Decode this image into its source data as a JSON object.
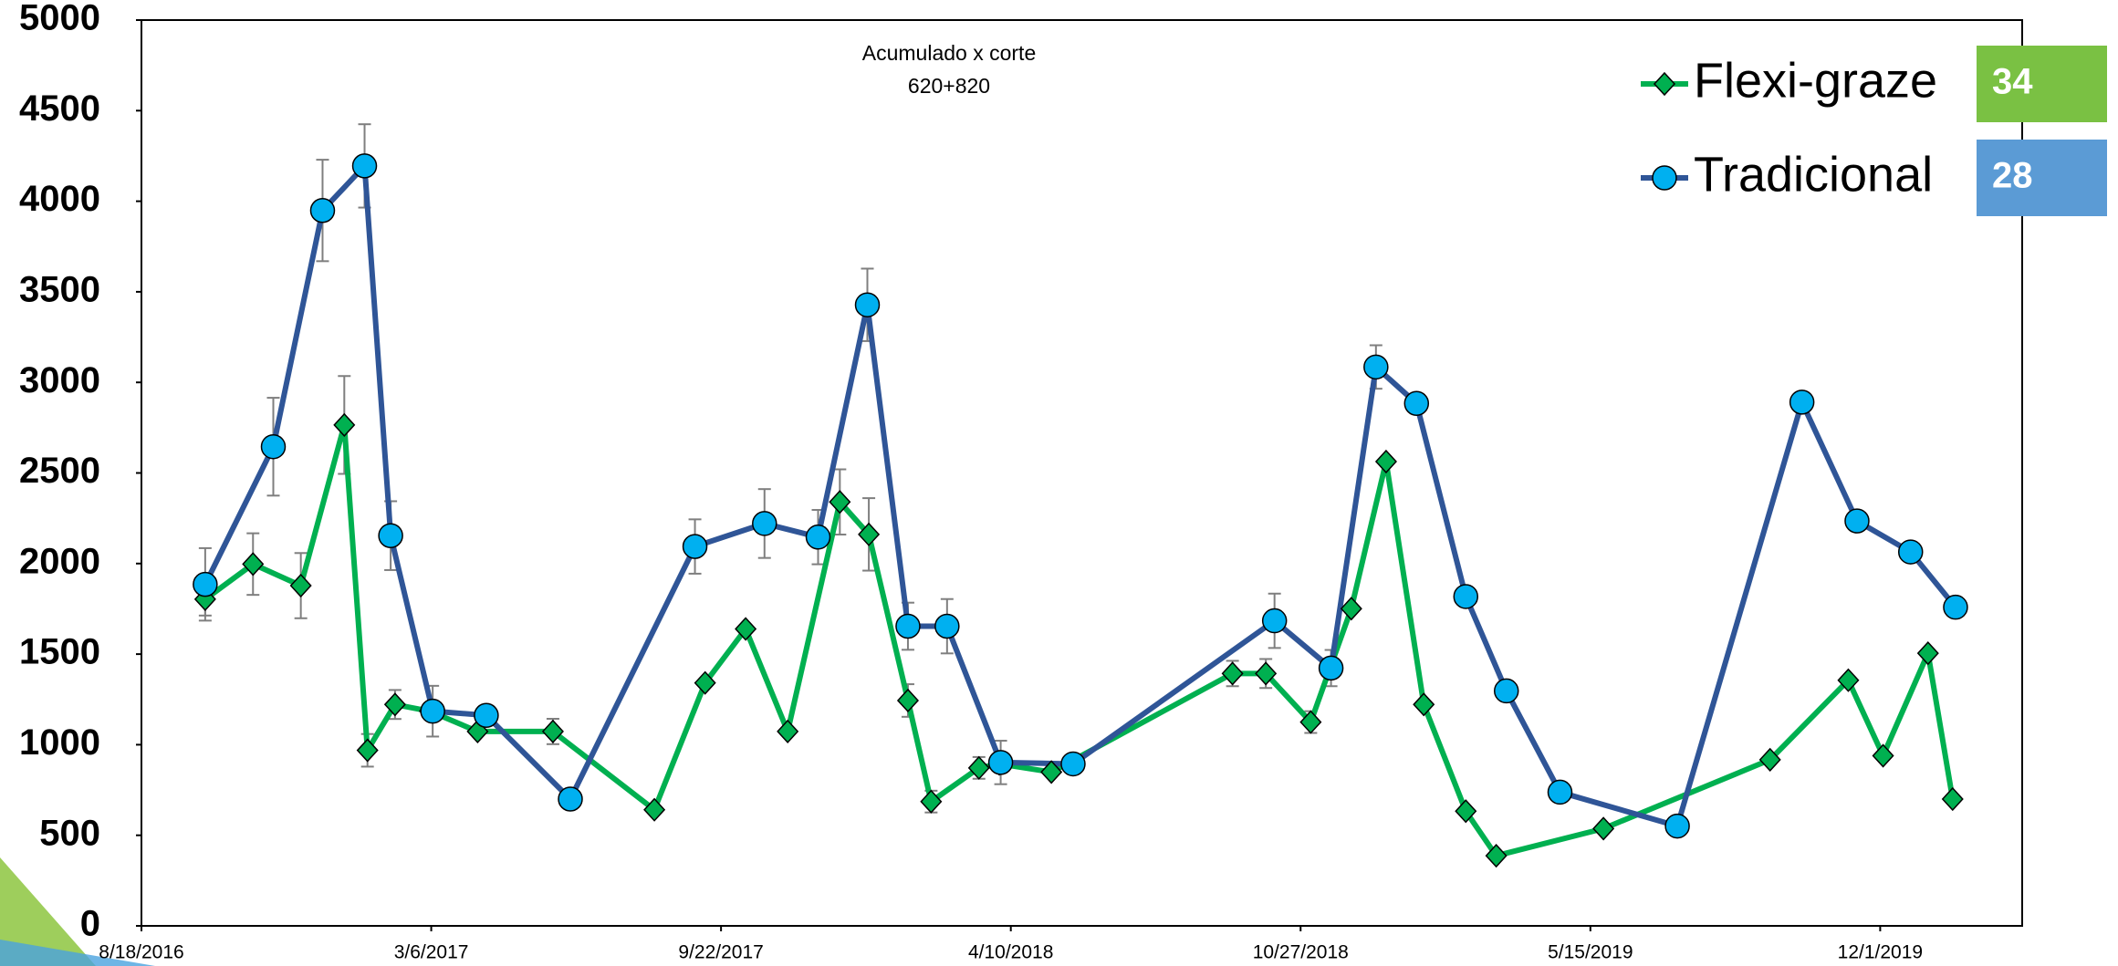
{
  "chart_data": {
    "type": "line",
    "annotation": [
      "Acumulado x corte",
      "620+820"
    ],
    "xlim": [
      "8/18/2016",
      "3/8/2020"
    ],
    "xticks": [
      "8/18/2016",
      "3/6/2017",
      "9/22/2017",
      "4/10/2018",
      "10/27/2018",
      "5/15/2019",
      "12/1/2019"
    ],
    "ylim": [
      0,
      5000
    ],
    "yticks": [
      0,
      500,
      1000,
      1500,
      2000,
      2500,
      3000,
      3500,
      4000,
      4500,
      5000
    ],
    "series": [
      {
        "name": "Flexi-graze",
        "color": "#00b050",
        "marker": "diamond",
        "marker_color": "#00b050",
        "count": 34,
        "count_color": "#7ac143",
        "x": [
          "10/1/2016",
          "11/3/2016",
          "12/6/2016",
          "1/5/2017",
          "1/21/2017",
          "2/9/2017",
          "3/5/2017",
          "4/7/2017",
          "5/29/2017",
          "8/7/2017",
          "9/11/2017",
          "10/9/2017",
          "11/7/2017",
          "12/13/2017",
          "1/2/2018",
          "1/29/2018",
          "2/14/2018",
          "3/19/2018",
          "4/2/2018",
          "5/8/2018",
          "9/10/2018",
          "10/3/2018",
          "11/3/2018",
          "12/1/2018",
          "12/25/2018",
          "1/20/2019",
          "2/18/2019",
          "3/11/2019",
          "5/24/2019",
          "9/16/2019",
          "11/9/2019",
          "12/3/2019",
          "1/3/2020",
          "1/20/2020"
        ],
        "values": [
          1803,
          1997,
          1878,
          2765,
          969,
          1222,
          1185,
          1073,
          1073,
          641,
          1341,
          1639,
          1073,
          2340,
          2161,
          1244,
          686,
          872,
          894,
          849,
          1393,
          1393,
          1125,
          1751,
          2563,
          1222,
          633,
          387,
          537,
          917,
          1356,
          939,
          1505,
          700
        ],
        "errors": [
          90,
          170,
          180,
          270,
          90,
          80,
          null,
          null,
          70,
          null,
          null,
          null,
          null,
          180,
          200,
          90,
          60,
          60,
          null,
          null,
          70,
          80,
          60,
          null,
          null,
          null,
          null,
          null,
          null,
          null,
          null,
          null,
          null,
          null
        ]
      },
      {
        "name": "Tradicional",
        "color": "#2f5597",
        "marker": "circle",
        "marker_color": "#00b0f0",
        "count": 28,
        "count_color": "#5b9bd5",
        "x": [
          "10/1/2016",
          "11/17/2016",
          "12/21/2016",
          "1/19/2017",
          "2/6/2017",
          "3/7/2017",
          "4/13/2017",
          "6/10/2017",
          "9/4/2017",
          "10/22/2017",
          "11/28/2017",
          "1/1/2018",
          "1/29/2018",
          "2/25/2018",
          "4/3/2018",
          "5/23/2018",
          "10/9/2018",
          "11/17/2018",
          "12/18/2018",
          "1/15/2019",
          "2/18/2019",
          "3/18/2019",
          "4/24/2019",
          "7/14/2019",
          "10/8/2019",
          "11/15/2019",
          "12/22/2019",
          "1/22/2020"
        ],
        "values": [
          1885,
          2645,
          3949,
          4195,
          2154,
          1185,
          1162,
          700,
          2094,
          2221,
          2146,
          3428,
          1654,
          1654,
          902,
          894,
          1684,
          1423,
          3085,
          2884,
          1818,
          1297,
          738,
          551,
          2891,
          2235,
          2064,
          1759
        ],
        "errors": [
          200,
          270,
          280,
          230,
          190,
          140,
          null,
          null,
          150,
          190,
          150,
          200,
          130,
          150,
          120,
          null,
          150,
          100,
          120,
          null,
          null,
          null,
          null,
          null,
          null,
          null,
          null,
          null
        ]
      }
    ]
  }
}
